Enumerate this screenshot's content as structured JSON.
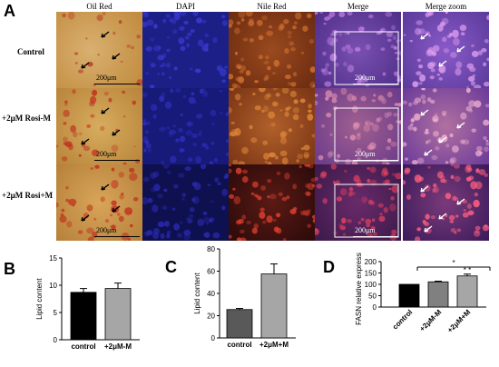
{
  "panels": {
    "A": "A",
    "B": "B",
    "C": "C",
    "D": "D"
  },
  "columns": [
    "Oil Red",
    "DAPI",
    "Nile Red",
    "Merge",
    "Merge zoom"
  ],
  "rows": [
    "Control",
    "+2μM Rosi-M",
    "+2μM Rosi+M"
  ],
  "scale_label": "200μm",
  "colors": {
    "oilred_bg": "#d6a24a",
    "oilred_drop": "#c0392b",
    "dapi": "#1a1a7a",
    "nile": "#8a3a12",
    "merge": "#6a3aa0",
    "zoom": "#7a4ab8",
    "bar_black": "#000000",
    "bar_gray": "#a6a6a6"
  },
  "chart_data": [
    {
      "type": "bar",
      "panel": "B",
      "categories": [
        "control",
        "+2μM-M"
      ],
      "values": [
        8.7,
        9.4
      ],
      "errors": [
        0.7,
        1.0
      ],
      "ylabel": "Lipid content",
      "ylim": [
        0,
        15
      ],
      "yticks": [
        0,
        5,
        10,
        15
      ],
      "bar_colors": [
        "#000000",
        "#a6a6a6"
      ]
    },
    {
      "type": "bar",
      "panel": "C",
      "categories": [
        "control",
        "+2μM+M"
      ],
      "values": [
        25.5,
        57.5
      ],
      "errors": [
        1.0,
        9.0
      ],
      "ylabel": "Lipid content",
      "ylim": [
        0,
        80
      ],
      "yticks": [
        0,
        20,
        40,
        60,
        80
      ],
      "bar_colors": [
        "#595959",
        "#a6a6a6"
      ]
    },
    {
      "type": "bar",
      "panel": "D",
      "categories": [
        "control",
        "+2μM-M",
        "+2μM+M"
      ],
      "values": [
        100,
        111,
        137
      ],
      "errors": [
        0,
        3,
        8
      ],
      "ylabel": "FASN relative expression",
      "ylim": [
        0,
        200
      ],
      "yticks": [
        0,
        50,
        100,
        150,
        200
      ],
      "bar_colors": [
        "#000000",
        "#808080",
        "#a6a6a6"
      ],
      "annotations": [
        "*",
        "* *"
      ]
    }
  ]
}
